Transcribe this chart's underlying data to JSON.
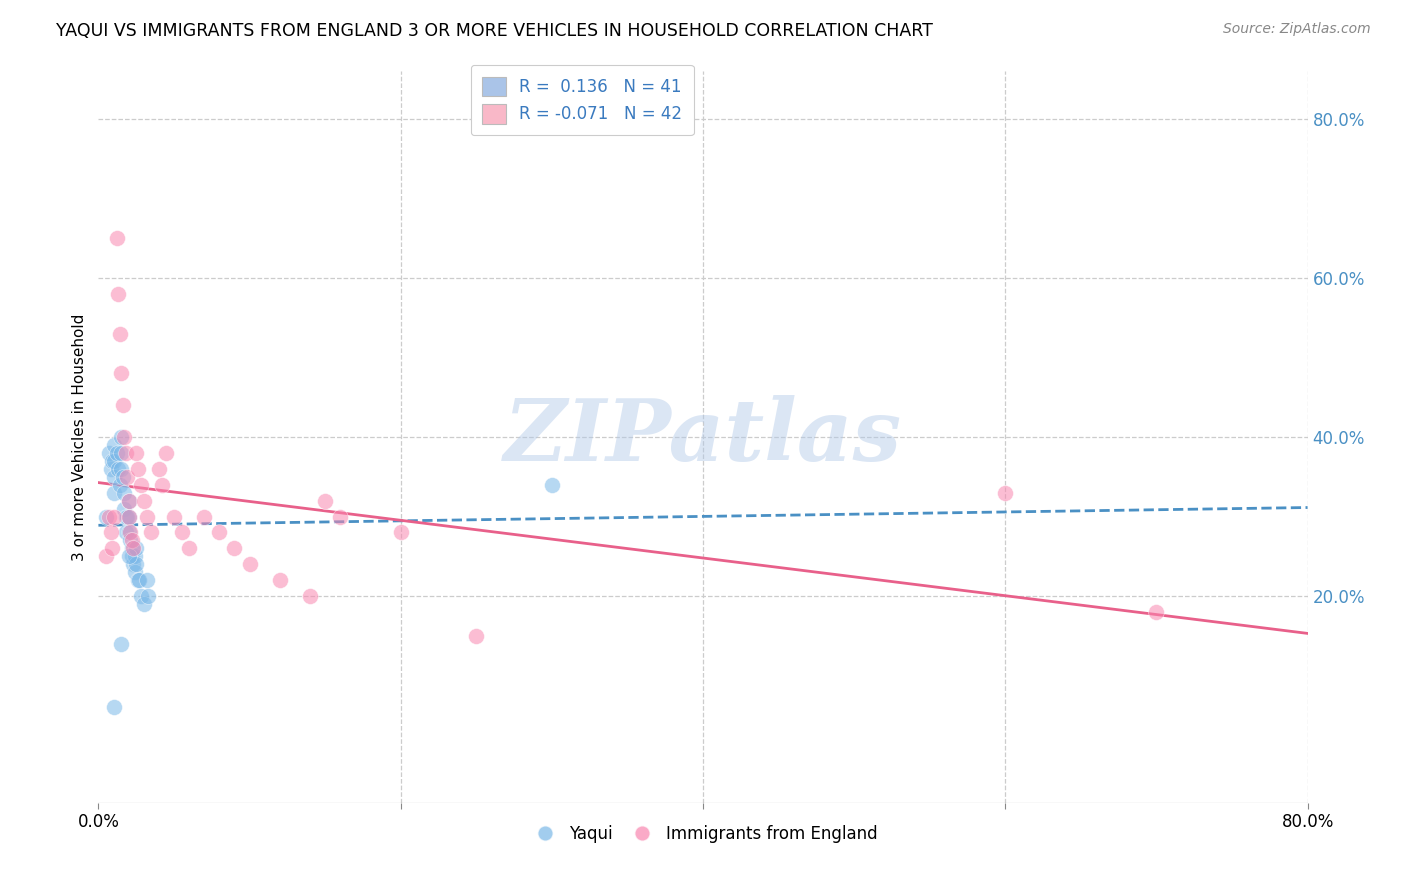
{
  "title": "YAQUI VS IMMIGRANTS FROM ENGLAND 3 OR MORE VEHICLES IN HOUSEHOLD CORRELATION CHART",
  "source": "Source: ZipAtlas.com",
  "ylabel": "3 or more Vehicles in Household",
  "right_ytick_vals": [
    0.8,
    0.6,
    0.4,
    0.2
  ],
  "xmin": 0.0,
  "xmax": 0.8,
  "ymin": -0.06,
  "ymax": 0.86,
  "legend_r1": "R =  0.136   N = 41",
  "legend_r2": "R = -0.071   N = 42",
  "legend_color1": "#aac4e8",
  "legend_color2": "#f9b8c8",
  "watermark": "ZIPatlas",
  "blue_color": "#7bb8e8",
  "pink_color": "#f987b0",
  "blue_line_color": "#4a90c4",
  "pink_line_color": "#e8608a",
  "yaqui_x": [
    0.005,
    0.007,
    0.008,
    0.009,
    0.01,
    0.01,
    0.01,
    0.01,
    0.012,
    0.013,
    0.014,
    0.015,
    0.015,
    0.015,
    0.016,
    0.017,
    0.017,
    0.018,
    0.018,
    0.019,
    0.02,
    0.02,
    0.02,
    0.021,
    0.022,
    0.022,
    0.023,
    0.024,
    0.024,
    0.025,
    0.025,
    0.026,
    0.027,
    0.028,
    0.03,
    0.032,
    0.033,
    0.015,
    0.02,
    0.3,
    0.01
  ],
  "yaqui_y": [
    0.3,
    0.38,
    0.36,
    0.37,
    0.39,
    0.37,
    0.35,
    0.33,
    0.38,
    0.36,
    0.34,
    0.4,
    0.38,
    0.36,
    0.35,
    0.33,
    0.31,
    0.3,
    0.28,
    0.3,
    0.32,
    0.3,
    0.28,
    0.27,
    0.26,
    0.25,
    0.24,
    0.25,
    0.23,
    0.26,
    0.24,
    0.22,
    0.22,
    0.2,
    0.19,
    0.22,
    0.2,
    0.14,
    0.25,
    0.34,
    0.06
  ],
  "england_x": [
    0.005,
    0.007,
    0.008,
    0.009,
    0.01,
    0.012,
    0.013,
    0.014,
    0.015,
    0.016,
    0.017,
    0.018,
    0.019,
    0.02,
    0.02,
    0.021,
    0.022,
    0.023,
    0.025,
    0.026,
    0.028,
    0.03,
    0.032,
    0.035,
    0.04,
    0.042,
    0.045,
    0.05,
    0.055,
    0.06,
    0.07,
    0.08,
    0.09,
    0.1,
    0.12,
    0.14,
    0.15,
    0.16,
    0.2,
    0.25,
    0.6,
    0.7
  ],
  "england_y": [
    0.25,
    0.3,
    0.28,
    0.26,
    0.3,
    0.65,
    0.58,
    0.53,
    0.48,
    0.44,
    0.4,
    0.38,
    0.35,
    0.32,
    0.3,
    0.28,
    0.27,
    0.26,
    0.38,
    0.36,
    0.34,
    0.32,
    0.3,
    0.28,
    0.36,
    0.34,
    0.38,
    0.3,
    0.28,
    0.26,
    0.3,
    0.28,
    0.26,
    0.24,
    0.22,
    0.2,
    0.32,
    0.3,
    0.28,
    0.15,
    0.33,
    0.18
  ]
}
